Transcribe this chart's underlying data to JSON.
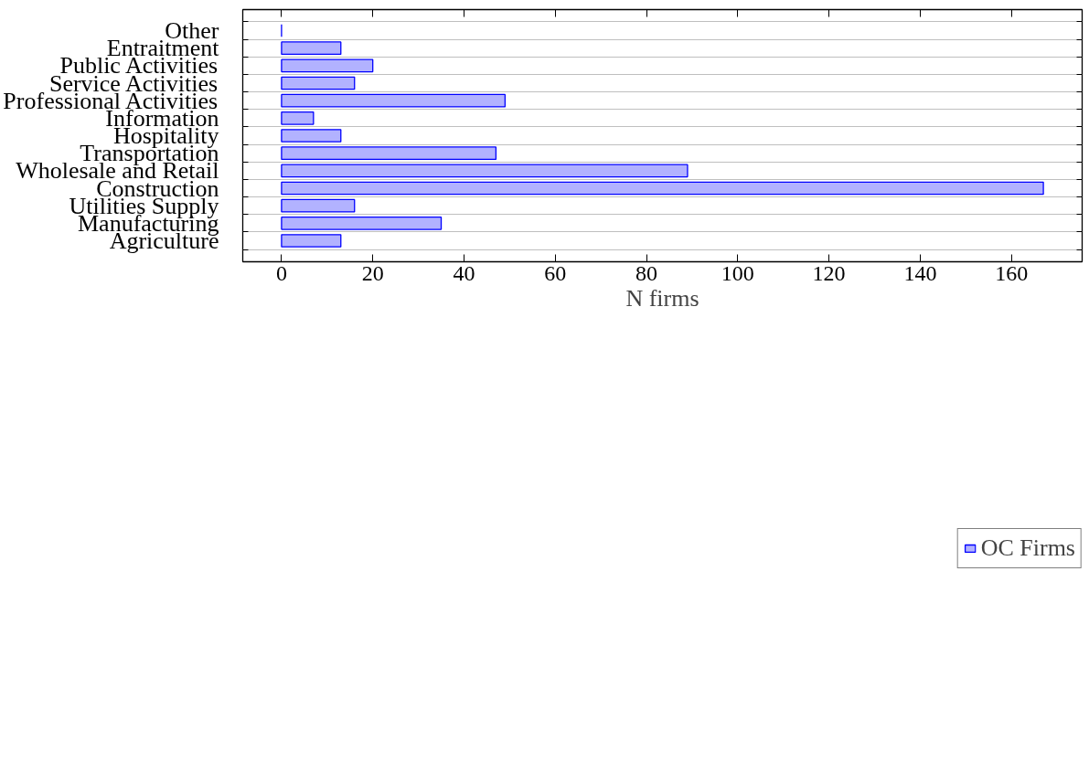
{
  "chart_data": {
    "type": "bar",
    "orientation": "horizontal",
    "xlabel": "N firms",
    "categories": [
      "Other",
      "Entraitment",
      "Public Activities",
      "Service Activities",
      "Professional Activities",
      "Information",
      "Hospitality",
      "Transportation",
      "Wholesale and Retail",
      "Construction",
      "Utilities Supply",
      "Manufacturing",
      "Agriculture"
    ],
    "series": [
      {
        "name": "OC Firms",
        "color": "#0000ff",
        "values": [
          0,
          13,
          20,
          16,
          49,
          7,
          13,
          47,
          89,
          167,
          16,
          35,
          13
        ]
      }
    ],
    "xlim": [
      -8.5,
      175.5
    ],
    "xticks": [
      0,
      20,
      40,
      60,
      80,
      100,
      120,
      140,
      160
    ],
    "grid": "y",
    "legend": "bottom"
  }
}
